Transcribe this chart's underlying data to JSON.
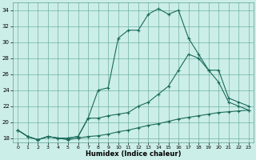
{
  "xlabel": "Humidex (Indice chaleur)",
  "bg_color": "#cceee8",
  "grid_color": "#5ba090",
  "line_color": "#1a6b5a",
  "xlim": [
    -0.5,
    23.5
  ],
  "ylim": [
    17.5,
    35.0
  ],
  "yticks": [
    18,
    20,
    22,
    24,
    26,
    28,
    30,
    32,
    34
  ],
  "xticks": [
    0,
    1,
    2,
    3,
    4,
    5,
    6,
    7,
    8,
    9,
    10,
    11,
    12,
    13,
    14,
    15,
    16,
    17,
    18,
    19,
    20,
    21,
    22,
    23
  ],
  "line1_x": [
    0,
    1,
    2,
    3,
    4,
    5,
    6,
    7,
    8,
    9,
    10,
    11,
    12,
    13,
    14,
    15,
    16,
    17,
    18,
    19,
    20,
    21,
    22,
    23
  ],
  "line1_y": [
    19.0,
    18.2,
    17.8,
    18.2,
    18.0,
    17.8,
    18.0,
    18.2,
    18.3,
    18.5,
    18.8,
    19.0,
    19.3,
    19.6,
    19.8,
    20.1,
    20.4,
    20.6,
    20.8,
    21.0,
    21.2,
    21.3,
    21.4,
    21.5
  ],
  "line2_x": [
    0,
    1,
    2,
    3,
    4,
    5,
    6,
    7,
    8,
    9,
    10,
    11,
    12,
    13,
    14,
    15,
    16,
    17,
    18,
    19,
    20,
    21,
    22,
    23
  ],
  "line2_y": [
    19.0,
    18.2,
    17.8,
    18.2,
    18.0,
    18.0,
    18.2,
    20.5,
    20.5,
    20.8,
    21.0,
    21.2,
    22.0,
    22.5,
    23.5,
    24.5,
    26.5,
    28.5,
    28.0,
    26.5,
    25.0,
    22.5,
    22.0,
    21.5
  ],
  "line3_x": [
    0,
    1,
    2,
    3,
    4,
    5,
    6,
    7,
    8,
    9,
    10,
    11,
    12,
    13,
    14,
    15,
    16,
    17,
    18,
    19,
    20,
    21,
    22,
    23
  ],
  "line3_y": [
    19.0,
    18.2,
    17.8,
    18.2,
    18.0,
    18.0,
    18.2,
    20.5,
    24.0,
    24.3,
    30.5,
    31.5,
    31.5,
    33.5,
    34.2,
    33.5,
    34.0,
    30.5,
    28.5,
    26.5,
    26.5,
    23.0,
    22.5,
    22.0
  ]
}
